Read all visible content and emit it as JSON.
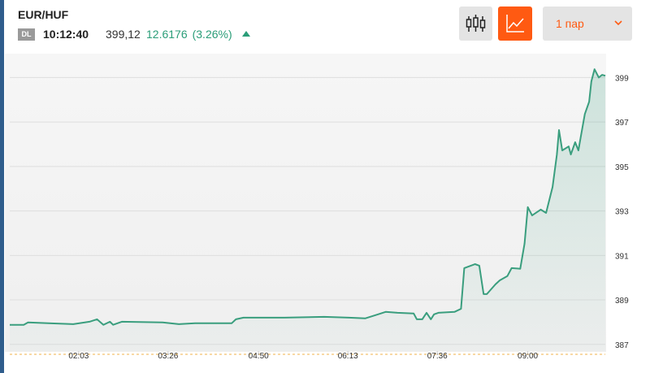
{
  "header": {
    "badge": "DL",
    "time": "10:12:40",
    "price": "399,12",
    "change": "12.6176",
    "change_pct": "(3.26%)"
  },
  "controls": {
    "period": "1 пар"
  },
  "chart_data": {
    "type": "line",
    "title": "EUR/HUF",
    "color": "#3a9e7e",
    "grid": true,
    "x": [
      59,
      72,
      76,
      95,
      118,
      133,
      140,
      146,
      152,
      155,
      163,
      201,
      216,
      231,
      265,
      269,
      276,
      314,
      351,
      374,
      389,
      401,
      408,
      419,
      434,
      437,
      442,
      446,
      450,
      453,
      457,
      472,
      478,
      481,
      491,
      495,
      499,
      502,
      510,
      514,
      521,
      525,
      533,
      537,
      540,
      544,
      552,
      557,
      563,
      567,
      569,
      572,
      578,
      580,
      584,
      587,
      589,
      593,
      597,
      599,
      602,
      606,
      609,
      612
    ],
    "values": [
      387.88,
      387.88,
      387.99,
      387.95,
      387.91,
      388.02,
      388.13,
      387.88,
      388.02,
      387.88,
      388.02,
      387.99,
      387.91,
      387.95,
      387.95,
      388.13,
      388.2,
      388.2,
      388.24,
      388.2,
      388.17,
      388.35,
      388.46,
      388.42,
      388.39,
      388.13,
      388.13,
      388.42,
      388.13,
      388.35,
      388.42,
      388.46,
      388.6,
      390.43,
      390.61,
      390.54,
      389.26,
      389.26,
      389.7,
      389.88,
      390.07,
      390.43,
      390.4,
      391.53,
      393.17,
      392.8,
      393.06,
      392.91,
      394.08,
      395.54,
      396.64,
      395.72,
      395.9,
      395.54,
      396.09,
      395.72,
      396.27,
      397.36,
      397.91,
      398.82,
      399.37,
      399.0,
      399.12,
      399.08
    ],
    "xlim": [
      59,
      612
    ],
    "xticks": [
      {
        "value": 123,
        "label": "02:03"
      },
      {
        "value": 206,
        "label": "03:26"
      },
      {
        "value": 290,
        "label": "04:50"
      },
      {
        "value": 373,
        "label": "06:13"
      },
      {
        "value": 456,
        "label": "07:36"
      },
      {
        "value": 540,
        "label": "09:00"
      }
    ],
    "ylim": [
      386.7,
      400.0
    ],
    "yticks": [
      387,
      389,
      391,
      393,
      395,
      397,
      399
    ]
  }
}
